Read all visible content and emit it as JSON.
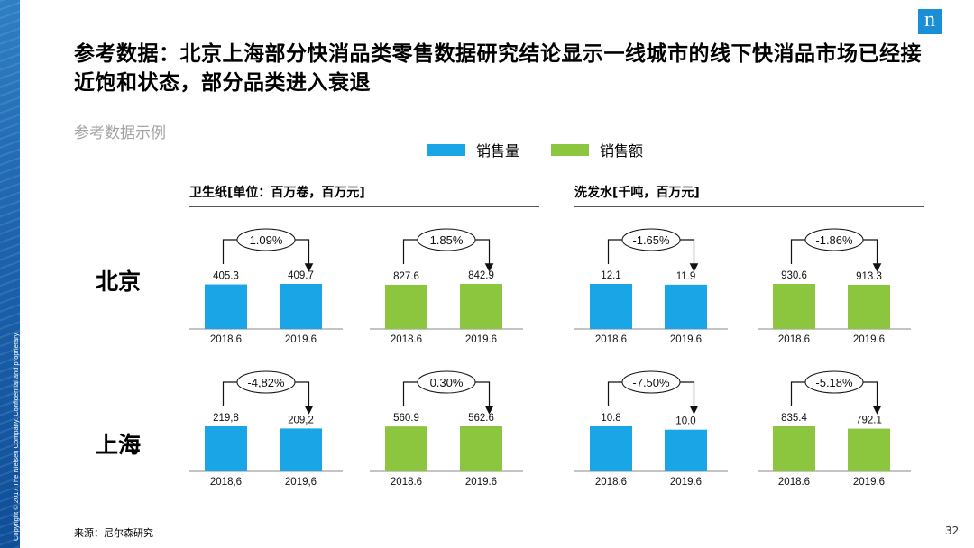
{
  "slide": {
    "title": "参考数据：北京上海部分快消品类零售数据研究结论显示一线城市的线下快消品市场已经接近饱和状态，部分品类进入衰退",
    "subtitle": "参考数据示例",
    "source": "来源：尼尔森研究",
    "page_number": "32",
    "copyright": "Copyright © 2017 The Nielsen Company. Confidential and proprietary.",
    "logo_text": "n"
  },
  "legend": [
    {
      "label": "销售量",
      "color": "#1aa6e6"
    },
    {
      "label": "销售额",
      "color": "#8cc63f"
    }
  ],
  "groups": [
    {
      "title": "卫生纸[单位：百万卷，百万元]"
    },
    {
      "title": "洗发水[千吨，百万元]"
    }
  ],
  "cities": [
    "北京",
    "上海"
  ],
  "chart_data": [
    {
      "type": "bar",
      "city": "北京",
      "category": "卫生纸",
      "measure": "销售量",
      "color": "#1aa6e6",
      "categories": [
        "2018.6",
        "2019.6"
      ],
      "values": [
        405.3,
        409.7
      ],
      "labels": [
        "405.3",
        "409.7"
      ],
      "change": "1.09%"
    },
    {
      "type": "bar",
      "city": "北京",
      "category": "卫生纸",
      "measure": "销售额",
      "color": "#8cc63f",
      "categories": [
        "2018.6",
        "2019.6"
      ],
      "values": [
        827.6,
        842.9
      ],
      "labels": [
        "827.6",
        "842.9"
      ],
      "change": "1.85%"
    },
    {
      "type": "bar",
      "city": "北京",
      "category": "洗发水",
      "measure": "销售量",
      "color": "#1aa6e6",
      "categories": [
        "2018.6",
        "2019.6"
      ],
      "values": [
        12.1,
        11.9
      ],
      "labels": [
        "12.1",
        "11.9"
      ],
      "change": "-1.65%"
    },
    {
      "type": "bar",
      "city": "北京",
      "category": "洗发水",
      "measure": "销售额",
      "color": "#8cc63f",
      "categories": [
        "2018.6",
        "2019.6"
      ],
      "values": [
        930.6,
        913.3
      ],
      "labels": [
        "930.6",
        "913.3"
      ],
      "change": "-1.86%"
    },
    {
      "type": "bar",
      "city": "上海",
      "category": "卫生纸",
      "measure": "销售量",
      "color": "#1aa6e6",
      "categories": [
        "2018,6",
        "2019,6"
      ],
      "values": [
        219.8,
        209.2
      ],
      "labels": [
        "219,8",
        "209,2"
      ],
      "change": "-4,82%"
    },
    {
      "type": "bar",
      "city": "上海",
      "category": "卫生纸",
      "measure": "销售额",
      "color": "#8cc63f",
      "categories": [
        "2018.6",
        "2019.6"
      ],
      "values": [
        560.9,
        562.6
      ],
      "labels": [
        "560.9",
        "562.6"
      ],
      "change": "0.30%"
    },
    {
      "type": "bar",
      "city": "上海",
      "category": "洗发水",
      "measure": "销售量",
      "color": "#1aa6e6",
      "categories": [
        "2018.6",
        "2019.6"
      ],
      "values": [
        10.8,
        10.0
      ],
      "labels": [
        "10.8",
        "10.0"
      ],
      "change": "-7.50%"
    },
    {
      "type": "bar",
      "city": "上海",
      "category": "洗发水",
      "measure": "销售额",
      "color": "#8cc63f",
      "categories": [
        "2018.6",
        "2019.6"
      ],
      "values": [
        835.4,
        792.1
      ],
      "labels": [
        "835.4",
        "792.1"
      ],
      "change": "-5.18%"
    }
  ]
}
